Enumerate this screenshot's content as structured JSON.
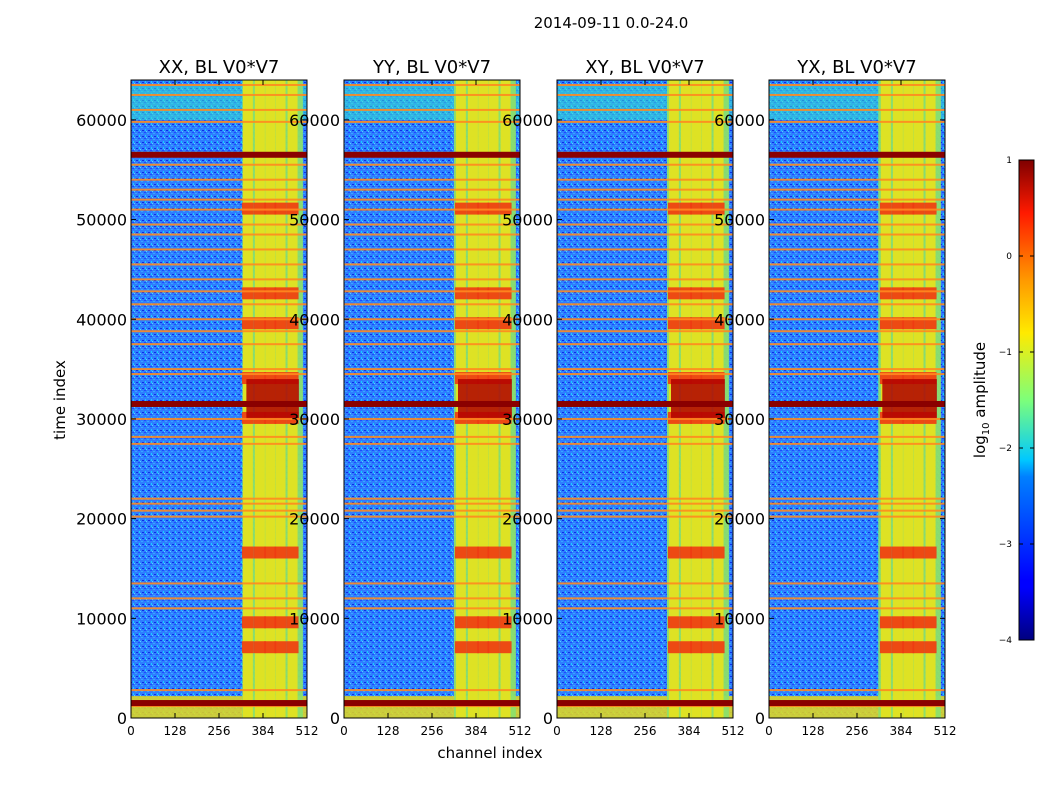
{
  "chart_data": {
    "type": "heatmap",
    "suptitle": "2014-09-11 0.0-24.0",
    "xlabel": "channel index",
    "ylabel": "time index",
    "xlim": [
      0,
      512
    ],
    "ylim": [
      0,
      64000
    ],
    "xticks": [
      "0",
      "128",
      "256",
      "384",
      "512"
    ],
    "yticks": [
      "0",
      "10000",
      "20000",
      "30000",
      "40000",
      "50000",
      "60000"
    ],
    "colorbar": {
      "label_main": "log",
      "label_sub": "10",
      "label_tail": " amplitude",
      "range": [
        -4,
        1
      ],
      "ticks": [
        "1",
        "0",
        "−1",
        "−2",
        "−3",
        "−4"
      ]
    },
    "panels": [
      {
        "title": "XX, BL V0*V7",
        "band_start": 324
      },
      {
        "title": "YY, BL V0*V7",
        "band_start": 320
      },
      {
        "title": "XY, BL V0*V7",
        "band_start": 320
      },
      {
        "title": "YX, BL V0*V7",
        "band_start": 318
      }
    ],
    "rfi_rows": [
      1200,
      2800,
      11000,
      12000,
      13500,
      20200,
      20800,
      21500,
      22000,
      27500,
      28200,
      30000,
      34500,
      35000,
      37500,
      38800,
      40000,
      41500,
      42800,
      44000,
      45500,
      47000,
      48500,
      49500,
      51000,
      52000,
      53000,
      54000,
      55500,
      56500,
      59800,
      61000,
      62500,
      63500
    ],
    "strong_rows": [
      56500,
      31500,
      1500
    ],
    "cell_columns": [
      340,
      375,
      405,
      435,
      470
    ],
    "cell_rows": [
      6500,
      9000,
      16000,
      29500,
      33500,
      39000,
      42000,
      50500
    ]
  }
}
